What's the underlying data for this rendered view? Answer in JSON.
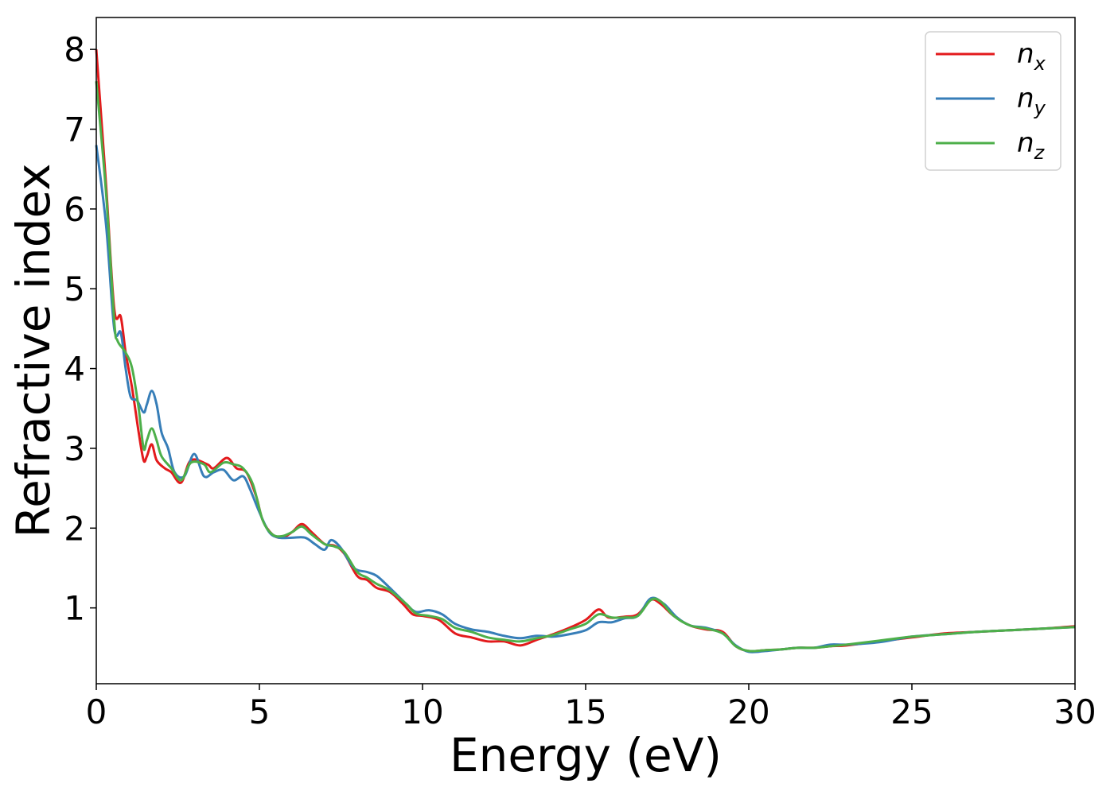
{
  "chart_data": {
    "type": "line",
    "title": "",
    "xlabel": "Energy (eV)",
    "ylabel": "Refractive index",
    "xlim": [
      0,
      30
    ],
    "ylim": [
      0.05,
      8.4
    ],
    "xticks": [
      0,
      5,
      10,
      15,
      20,
      25,
      30
    ],
    "yticks": [
      1,
      2,
      3,
      4,
      5,
      6,
      7,
      8
    ],
    "grid": false,
    "legend_position": "top-right",
    "series": [
      {
        "name": "n_x",
        "label_main": "n",
        "label_sub": "x",
        "color": "#e31a1c",
        "points": [
          [
            0,
            8.0
          ],
          [
            0.3,
            6.3
          ],
          [
            0.55,
            4.75
          ],
          [
            0.75,
            4.65
          ],
          [
            0.9,
            4.2
          ],
          [
            1.1,
            3.75
          ],
          [
            1.3,
            3.2
          ],
          [
            1.45,
            2.85
          ],
          [
            1.55,
            2.9
          ],
          [
            1.7,
            3.05
          ],
          [
            1.85,
            2.85
          ],
          [
            2.1,
            2.75
          ],
          [
            2.3,
            2.7
          ],
          [
            2.6,
            2.57
          ],
          [
            2.9,
            2.85
          ],
          [
            3.4,
            2.8
          ],
          [
            3.6,
            2.75
          ],
          [
            4.0,
            2.88
          ],
          [
            4.3,
            2.75
          ],
          [
            4.6,
            2.7
          ],
          [
            4.9,
            2.4
          ],
          [
            5.1,
            2.1
          ],
          [
            5.4,
            1.92
          ],
          [
            5.7,
            1.88
          ],
          [
            6.0,
            1.95
          ],
          [
            6.3,
            2.05
          ],
          [
            6.6,
            1.95
          ],
          [
            7.0,
            1.8
          ],
          [
            7.3,
            1.78
          ],
          [
            7.6,
            1.68
          ],
          [
            8.0,
            1.4
          ],
          [
            8.3,
            1.35
          ],
          [
            8.6,
            1.25
          ],
          [
            9.0,
            1.2
          ],
          [
            9.4,
            1.05
          ],
          [
            9.7,
            0.92
          ],
          [
            10.0,
            0.9
          ],
          [
            10.5,
            0.85
          ],
          [
            11.0,
            0.68
          ],
          [
            11.5,
            0.63
          ],
          [
            12.0,
            0.58
          ],
          [
            12.5,
            0.58
          ],
          [
            13.0,
            0.53
          ],
          [
            13.5,
            0.6
          ],
          [
            14.0,
            0.67
          ],
          [
            14.5,
            0.75
          ],
          [
            15.0,
            0.85
          ],
          [
            15.4,
            0.98
          ],
          [
            15.7,
            0.88
          ],
          [
            16.2,
            0.89
          ],
          [
            16.6,
            0.92
          ],
          [
            17.0,
            1.1
          ],
          [
            17.3,
            1.05
          ],
          [
            17.7,
            0.9
          ],
          [
            18.2,
            0.78
          ],
          [
            18.7,
            0.73
          ],
          [
            19.2,
            0.7
          ],
          [
            19.6,
            0.52
          ],
          [
            20.0,
            0.46
          ],
          [
            20.5,
            0.47
          ],
          [
            21.0,
            0.48
          ],
          [
            21.5,
            0.5
          ],
          [
            22.0,
            0.5
          ],
          [
            22.5,
            0.52
          ],
          [
            23.0,
            0.53
          ],
          [
            24.0,
            0.58
          ],
          [
            25.0,
            0.63
          ],
          [
            26.0,
            0.68
          ],
          [
            27.0,
            0.7
          ],
          [
            28.0,
            0.72
          ],
          [
            29.0,
            0.74
          ],
          [
            30.0,
            0.77
          ]
        ]
      },
      {
        "name": "n_y",
        "label_main": "n",
        "label_sub": "y",
        "color": "#377eb8",
        "points": [
          [
            0,
            6.8
          ],
          [
            0.3,
            5.8
          ],
          [
            0.55,
            4.5
          ],
          [
            0.75,
            4.45
          ],
          [
            0.9,
            4.0
          ],
          [
            1.05,
            3.65
          ],
          [
            1.25,
            3.6
          ],
          [
            1.45,
            3.45
          ],
          [
            1.55,
            3.55
          ],
          [
            1.7,
            3.72
          ],
          [
            1.85,
            3.55
          ],
          [
            2.0,
            3.2
          ],
          [
            2.2,
            3.0
          ],
          [
            2.4,
            2.7
          ],
          [
            2.7,
            2.65
          ],
          [
            3.0,
            2.93
          ],
          [
            3.3,
            2.65
          ],
          [
            3.6,
            2.7
          ],
          [
            3.9,
            2.73
          ],
          [
            4.2,
            2.6
          ],
          [
            4.5,
            2.65
          ],
          [
            4.7,
            2.5
          ],
          [
            5.0,
            2.2
          ],
          [
            5.3,
            1.95
          ],
          [
            5.6,
            1.88
          ],
          [
            6.0,
            1.88
          ],
          [
            6.4,
            1.88
          ],
          [
            6.7,
            1.8
          ],
          [
            7.0,
            1.73
          ],
          [
            7.2,
            1.85
          ],
          [
            7.5,
            1.75
          ],
          [
            7.9,
            1.5
          ],
          [
            8.3,
            1.45
          ],
          [
            8.6,
            1.4
          ],
          [
            9.0,
            1.25
          ],
          [
            9.5,
            1.05
          ],
          [
            9.8,
            0.95
          ],
          [
            10.2,
            0.97
          ],
          [
            10.6,
            0.92
          ],
          [
            11.0,
            0.8
          ],
          [
            11.5,
            0.73
          ],
          [
            12.0,
            0.7
          ],
          [
            12.5,
            0.65
          ],
          [
            13.0,
            0.62
          ],
          [
            13.5,
            0.65
          ],
          [
            14.0,
            0.64
          ],
          [
            14.5,
            0.67
          ],
          [
            15.0,
            0.72
          ],
          [
            15.4,
            0.82
          ],
          [
            15.8,
            0.82
          ],
          [
            16.2,
            0.87
          ],
          [
            16.6,
            0.9
          ],
          [
            17.0,
            1.12
          ],
          [
            17.4,
            1.05
          ],
          [
            17.8,
            0.88
          ],
          [
            18.2,
            0.78
          ],
          [
            18.7,
            0.75
          ],
          [
            19.2,
            0.68
          ],
          [
            19.6,
            0.53
          ],
          [
            20.0,
            0.45
          ],
          [
            20.5,
            0.46
          ],
          [
            21.0,
            0.48
          ],
          [
            21.5,
            0.5
          ],
          [
            22.0,
            0.5
          ],
          [
            22.5,
            0.54
          ],
          [
            23.0,
            0.54
          ],
          [
            24.0,
            0.57
          ],
          [
            25.0,
            0.64
          ],
          [
            26.0,
            0.67
          ],
          [
            27.0,
            0.7
          ],
          [
            28.0,
            0.72
          ],
          [
            29.0,
            0.74
          ],
          [
            30.0,
            0.76
          ]
        ]
      },
      {
        "name": "n_z",
        "label_main": "n",
        "label_sub": "z",
        "color": "#4daf4a",
        "points": [
          [
            0,
            7.6
          ],
          [
            0.3,
            6.2
          ],
          [
            0.55,
            4.6
          ],
          [
            0.65,
            4.35
          ],
          [
            0.9,
            4.2
          ],
          [
            1.1,
            4.0
          ],
          [
            1.3,
            3.5
          ],
          [
            1.45,
            3.0
          ],
          [
            1.55,
            3.1
          ],
          [
            1.7,
            3.25
          ],
          [
            1.85,
            3.1
          ],
          [
            2.0,
            2.9
          ],
          [
            2.3,
            2.75
          ],
          [
            2.6,
            2.6
          ],
          [
            2.9,
            2.82
          ],
          [
            3.3,
            2.8
          ],
          [
            3.5,
            2.7
          ],
          [
            3.9,
            2.82
          ],
          [
            4.2,
            2.8
          ],
          [
            4.5,
            2.75
          ],
          [
            4.8,
            2.55
          ],
          [
            5.1,
            2.1
          ],
          [
            5.4,
            1.92
          ],
          [
            5.7,
            1.9
          ],
          [
            6.0,
            1.95
          ],
          [
            6.3,
            2.02
          ],
          [
            6.6,
            1.92
          ],
          [
            7.0,
            1.8
          ],
          [
            7.3,
            1.77
          ],
          [
            7.6,
            1.7
          ],
          [
            8.0,
            1.45
          ],
          [
            8.3,
            1.38
          ],
          [
            8.6,
            1.3
          ],
          [
            9.0,
            1.22
          ],
          [
            9.5,
            1.05
          ],
          [
            9.8,
            0.93
          ],
          [
            10.2,
            0.9
          ],
          [
            10.6,
            0.86
          ],
          [
            11.0,
            0.75
          ],
          [
            11.5,
            0.7
          ],
          [
            12.0,
            0.63
          ],
          [
            12.5,
            0.6
          ],
          [
            13.0,
            0.58
          ],
          [
            13.5,
            0.62
          ],
          [
            14.0,
            0.66
          ],
          [
            14.5,
            0.73
          ],
          [
            15.0,
            0.8
          ],
          [
            15.4,
            0.92
          ],
          [
            15.8,
            0.88
          ],
          [
            16.2,
            0.88
          ],
          [
            16.6,
            0.9
          ],
          [
            17.0,
            1.1
          ],
          [
            17.3,
            1.08
          ],
          [
            17.7,
            0.9
          ],
          [
            18.2,
            0.78
          ],
          [
            18.7,
            0.74
          ],
          [
            19.2,
            0.68
          ],
          [
            19.6,
            0.52
          ],
          [
            20.0,
            0.46
          ],
          [
            20.5,
            0.47
          ],
          [
            21.0,
            0.48
          ],
          [
            21.5,
            0.5
          ],
          [
            22.0,
            0.5
          ],
          [
            22.5,
            0.52
          ],
          [
            23.0,
            0.54
          ],
          [
            24.0,
            0.59
          ],
          [
            25.0,
            0.64
          ],
          [
            26.0,
            0.67
          ],
          [
            27.0,
            0.7
          ],
          [
            28.0,
            0.72
          ],
          [
            29.0,
            0.74
          ],
          [
            30.0,
            0.76
          ]
        ]
      }
    ]
  }
}
